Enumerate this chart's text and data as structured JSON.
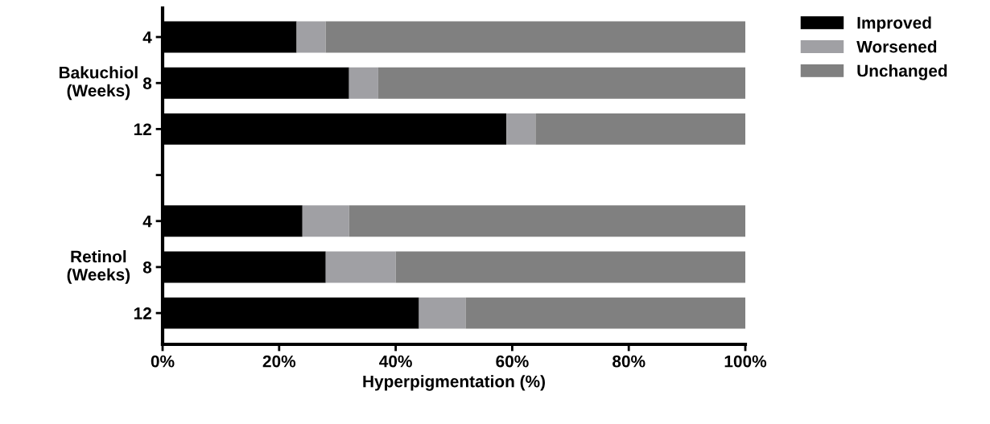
{
  "chart_data": {
    "type": "bar",
    "orientation": "horizontal",
    "stacked": true,
    "categories": [
      "4",
      "8",
      "12",
      null,
      "4",
      "8",
      "12"
    ],
    "series": [
      {
        "name": "Improved",
        "color": "#000000",
        "values": [
          23,
          32,
          59,
          null,
          24,
          28,
          44
        ]
      },
      {
        "name": "Worsened",
        "color": "#a0a0a4",
        "values": [
          5,
          5,
          5,
          null,
          8,
          12,
          8
        ]
      },
      {
        "name": "Unchanged",
        "color": "#808080",
        "values": [
          72,
          63,
          36,
          null,
          68,
          60,
          48
        ]
      }
    ],
    "xlabel": "Hyperpigmentation (%)",
    "xlim": [
      0,
      100
    ],
    "xticks": [
      {
        "value": 0,
        "label": "0%"
      },
      {
        "value": 20,
        "label": "20%"
      },
      {
        "value": 40,
        "label": "40%"
      },
      {
        "value": 60,
        "label": "60%"
      },
      {
        "value": 80,
        "label": "80%"
      },
      {
        "value": 100,
        "label": "100%"
      }
    ],
    "annotations": [
      "Bakuchiol\n(Weeks)",
      "Retinol\n(Weeks)"
    ],
    "legend": "top right",
    "grid": false
  }
}
